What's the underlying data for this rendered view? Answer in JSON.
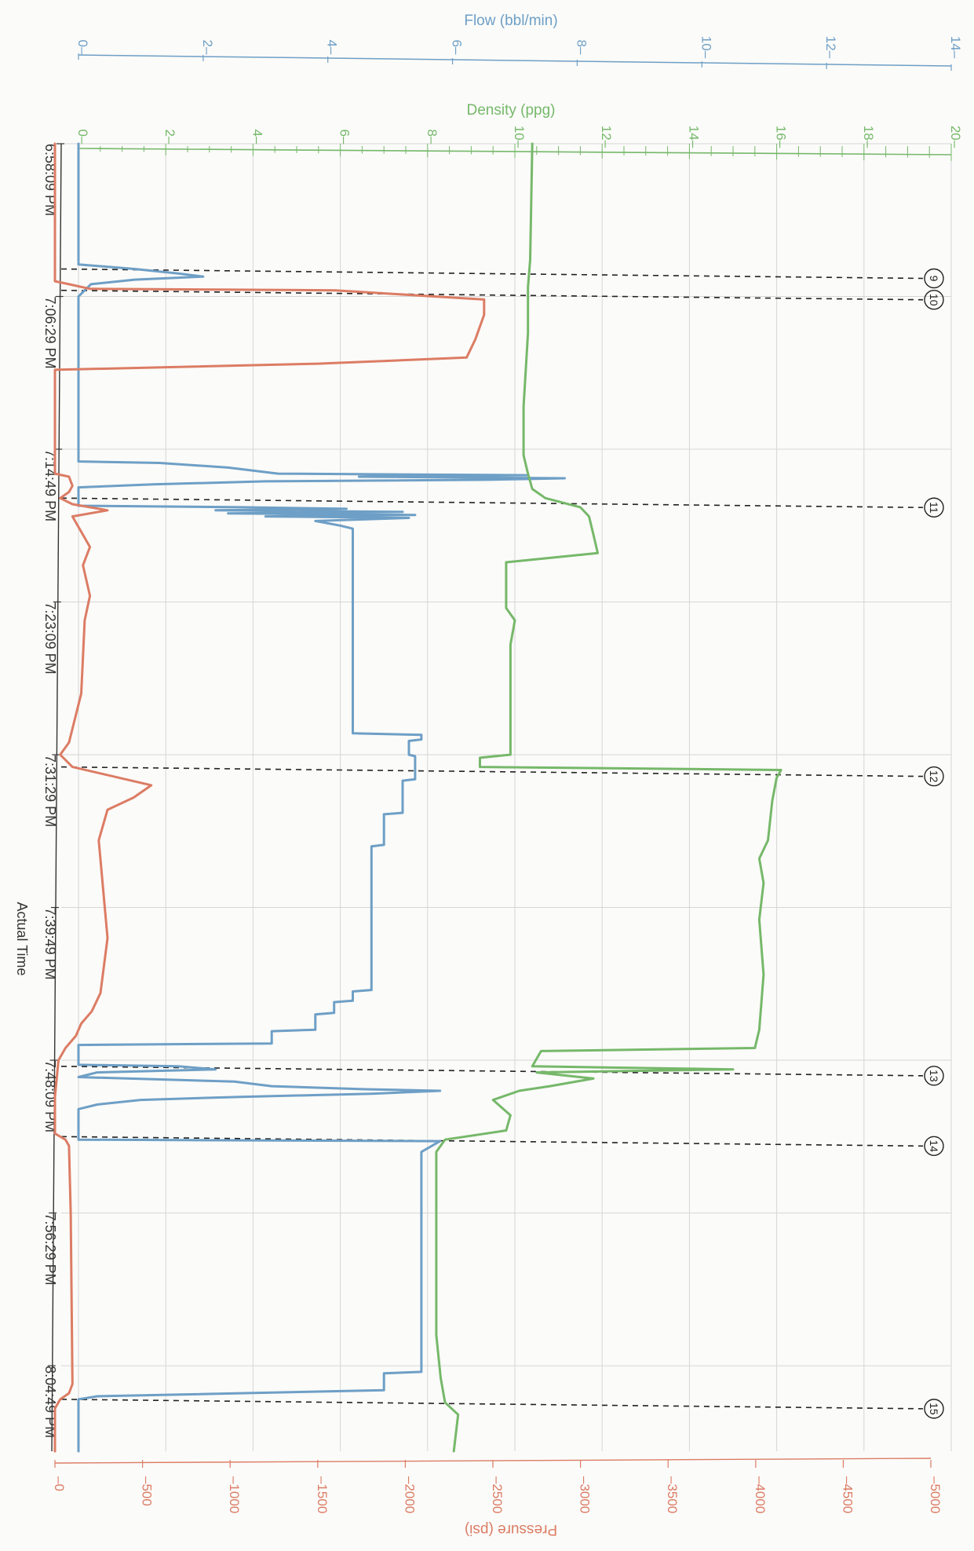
{
  "chart_data": {
    "type": "line",
    "title": "",
    "colors": {
      "flow": "#6e9fc6",
      "density": "#76b86a",
      "pressure": "#dc7c64",
      "grid": "#d6d6d6",
      "event": "#222222",
      "time_axis": "#333333"
    },
    "time_axis": {
      "label": "Actual Time",
      "ticks": [
        "6:58:09 PM",
        "7:06:29 PM",
        "7:14:49 PM",
        "7:23:09 PM",
        "7:31:29 PM",
        "7:39:49 PM",
        "7:48:09 PM",
        "7:56:29 PM",
        "8:04:49 PM"
      ],
      "start": "6:58:09 PM",
      "end": "8:09:29 PM",
      "grid": true
    },
    "flow_axis": {
      "label": "Flow (bbl/min)",
      "range": [
        0,
        14
      ],
      "ticks": [
        "0",
        "2",
        "4",
        "6",
        "8",
        "10",
        "12",
        "14"
      ]
    },
    "density_axis": {
      "label": "Density (ppg)",
      "range": [
        0,
        20
      ],
      "ticks": [
        "0",
        "2",
        "4",
        "6",
        "8",
        "10",
        "12",
        "14",
        "16",
        "18",
        "20"
      ]
    },
    "pressure_axis": {
      "label": "Pressure (psi)",
      "range": [
        0,
        5000
      ],
      "ticks": [
        "0",
        "500",
        "1000",
        "1500",
        "2000",
        "2500",
        "3000",
        "3500",
        "4000",
        "4500",
        "5000"
      ]
    },
    "events": [
      {
        "labels": [
          "9"
        ],
        "time": "7:04:59 PM"
      },
      {
        "labels": [
          "10"
        ],
        "time": "7:06:09 PM"
      },
      {
        "labels": [
          "11"
        ],
        "time": "7:17:29 PM"
      },
      {
        "labels": [
          "12"
        ],
        "time": "7:32:09 PM"
      },
      {
        "labels": [
          "13"
        ],
        "time": "7:48:29 PM"
      },
      {
        "labels": [
          "14"
        ],
        "time": "7:52:19 PM"
      },
      {
        "labels": [
          "15"
        ],
        "time": "8:06:39 PM"
      }
    ],
    "series": [
      {
        "name": "Flow",
        "unit": "bbl/min",
        "axis": "flow",
        "points": [
          [
            "6:58:09 PM",
            0
          ],
          [
            "7:04:44 PM",
            0
          ],
          [
            "7:04:59 PM",
            0.9
          ],
          [
            "7:05:14 PM",
            1.6
          ],
          [
            "7:05:24 PM",
            2.0
          ],
          [
            "7:05:34 PM",
            0.9
          ],
          [
            "7:05:49 PM",
            0.2
          ],
          [
            "7:06:29 PM",
            0
          ],
          [
            "7:15:29 PM",
            0
          ],
          [
            "7:15:34 PM",
            1.3
          ],
          [
            "7:15:49 PM",
            2.4
          ],
          [
            "7:16:09 PM",
            3.2
          ],
          [
            "7:16:14 PM",
            7.2
          ],
          [
            "7:16:19 PM",
            4.5
          ],
          [
            "7:16:24 PM",
            7.8
          ],
          [
            "7:16:29 PM",
            6.6
          ],
          [
            "7:16:34 PM",
            3.0
          ],
          [
            "7:16:44 PM",
            1.2
          ],
          [
            "7:16:54 PM",
            0
          ],
          [
            "7:17:54 PM",
            0
          ],
          [
            "7:17:59 PM",
            2.6
          ],
          [
            "7:18:04 PM",
            4.3
          ],
          [
            "7:18:09 PM",
            2.2
          ],
          [
            "7:18:14 PM",
            5.2
          ],
          [
            "7:18:19 PM",
            2.4
          ],
          [
            "7:18:24 PM",
            5.4
          ],
          [
            "7:18:29 PM",
            3.0
          ],
          [
            "7:18:34 PM",
            5.3
          ],
          [
            "7:18:44 PM",
            3.8
          ],
          [
            "7:18:59 PM",
            4.2
          ],
          [
            "7:19:09 PM",
            4.4
          ],
          [
            "7:30:19 PM",
            4.4
          ],
          [
            "7:30:24 PM",
            5.5
          ],
          [
            "7:30:39 PM",
            5.5
          ],
          [
            "7:30:44 PM",
            5.3
          ],
          [
            "7:31:29 PM",
            5.3
          ],
          [
            "7:31:34 PM",
            5.4
          ],
          [
            "7:32:49 PM",
            5.4
          ],
          [
            "7:32:54 PM",
            5.2
          ],
          [
            "7:34:39 PM",
            5.2
          ],
          [
            "7:34:44 PM",
            4.9
          ],
          [
            "7:36:24 PM",
            4.9
          ],
          [
            "7:36:29 PM",
            4.7
          ],
          [
            "7:44:19 PM",
            4.7
          ],
          [
            "7:44:24 PM",
            4.4
          ],
          [
            "7:44:54 PM",
            4.4
          ],
          [
            "7:44:59 PM",
            4.1
          ],
          [
            "7:45:34 PM",
            4.1
          ],
          [
            "7:45:39 PM",
            3.8
          ],
          [
            "7:46:29 PM",
            3.8
          ],
          [
            "7:46:34 PM",
            3.1
          ],
          [
            "7:47:14 PM",
            3.1
          ],
          [
            "7:47:19 PM",
            0
          ],
          [
            "7:48:24 PM",
            0
          ],
          [
            "7:48:29 PM",
            1.6
          ],
          [
            "7:48:39 PM",
            2.2
          ],
          [
            "7:48:49 PM",
            0.3
          ],
          [
            "7:49:04 PM",
            0
          ],
          [
            "7:49:19 PM",
            2.5
          ],
          [
            "7:49:34 PM",
            3.1
          ],
          [
            "7:49:44 PM",
            4.6
          ],
          [
            "7:49:49 PM",
            5.8
          ],
          [
            "7:49:59 PM",
            4.7
          ],
          [
            "7:50:09 PM",
            2.6
          ],
          [
            "7:50:19 PM",
            1.0
          ],
          [
            "7:50:34 PM",
            0.3
          ],
          [
            "7:50:49 PM",
            0
          ],
          [
            "7:52:29 PM",
            0
          ],
          [
            "7:52:34 PM",
            5.8
          ],
          [
            "7:53:09 PM",
            5.5
          ],
          [
            "8:05:09 PM",
            5.5
          ],
          [
            "8:05:14 PM",
            4.9
          ],
          [
            "8:06:09 PM",
            4.9
          ],
          [
            "8:06:29 PM",
            0.3
          ],
          [
            "8:06:39 PM",
            0
          ],
          [
            "8:09:29 PM",
            0
          ]
        ]
      },
      {
        "name": "Density",
        "unit": "ppg",
        "axis": "density",
        "points": [
          [
            "6:58:09 PM",
            10.4
          ],
          [
            "7:04:29 PM",
            10.35
          ],
          [
            "7:05:59 PM",
            10.3
          ],
          [
            "7:08:29 PM",
            10.3
          ],
          [
            "7:12:29 PM",
            10.2
          ],
          [
            "7:15:09 PM",
            10.2
          ],
          [
            "7:16:09 PM",
            10.3
          ],
          [
            "7:16:59 PM",
            10.4
          ],
          [
            "7:17:29 PM",
            10.7
          ],
          [
            "7:17:59 PM",
            11.5
          ],
          [
            "7:18:29 PM",
            11.7
          ],
          [
            "7:19:29 PM",
            11.8
          ],
          [
            "7:20:29 PM",
            11.9
          ],
          [
            "7:20:59 PM",
            9.8
          ],
          [
            "7:23:29 PM",
            9.8
          ],
          [
            "7:24:09 PM",
            10.0
          ],
          [
            "7:25:29 PM",
            9.9
          ],
          [
            "7:31:29 PM",
            9.9
          ],
          [
            "7:31:39 PM",
            9.2
          ],
          [
            "7:32:09 PM",
            9.2
          ],
          [
            "7:32:19 PM",
            16.1
          ],
          [
            "7:32:44 PM",
            16.0
          ],
          [
            "7:33:59 PM",
            15.9
          ],
          [
            "7:36:09 PM",
            15.8
          ],
          [
            "7:37:09 PM",
            15.6
          ],
          [
            "7:38:29 PM",
            15.7
          ],
          [
            "7:40:29 PM",
            15.6
          ],
          [
            "7:43:29 PM",
            15.7
          ],
          [
            "7:46:29 PM",
            15.6
          ],
          [
            "7:47:29 PM",
            15.5
          ],
          [
            "7:47:39 PM",
            10.6
          ],
          [
            "7:48:29 PM",
            10.4
          ],
          [
            "7:48:39 PM",
            15.0
          ],
          [
            "7:48:49 PM",
            10.5
          ],
          [
            "7:49:09 PM",
            11.8
          ],
          [
            "7:49:34 PM",
            10.8
          ],
          [
            "7:49:49 PM",
            10.1
          ],
          [
            "7:50:19 PM",
            9.5
          ],
          [
            "7:51:09 PM",
            9.9
          ],
          [
            "7:51:59 PM",
            9.8
          ],
          [
            "7:52:29 PM",
            8.4
          ],
          [
            "7:53:09 PM",
            8.2
          ],
          [
            "8:03:09 PM",
            8.2
          ],
          [
            "8:05:29 PM",
            8.3
          ],
          [
            "8:06:49 PM",
            8.4
          ],
          [
            "8:07:29 PM",
            8.7
          ],
          [
            "8:09:29 PM",
            8.6
          ]
        ]
      },
      {
        "name": "Pressure",
        "unit": "psi",
        "axis": "pressure",
        "points": [
          [
            "6:58:09 PM",
            0
          ],
          [
            "7:05:39 PM",
            0
          ],
          [
            "7:05:49 PM",
            80
          ],
          [
            "7:06:04 PM",
            200
          ],
          [
            "7:06:09 PM",
            1600
          ],
          [
            "7:06:39 PM",
            2450
          ],
          [
            "7:07:29 PM",
            2450
          ],
          [
            "7:08:49 PM",
            2400
          ],
          [
            "7:09:49 PM",
            2350
          ],
          [
            "7:10:09 PM",
            1500
          ],
          [
            "7:10:29 PM",
            0
          ],
          [
            "7:16:09 PM",
            0
          ],
          [
            "7:16:19 PM",
            80
          ],
          [
            "7:16:49 PM",
            100
          ],
          [
            "7:17:09 PM",
            80
          ],
          [
            "7:17:29 PM",
            30
          ],
          [
            "7:17:49 PM",
            100
          ],
          [
            "7:18:09 PM",
            300
          ],
          [
            "7:18:29 PM",
            100
          ],
          [
            "7:20:09 PM",
            200
          ],
          [
            "7:21:09 PM",
            160
          ],
          [
            "7:22:49 PM",
            200
          ],
          [
            "7:24:09 PM",
            170
          ],
          [
            "7:28:09 PM",
            150
          ],
          [
            "7:30:49 PM",
            80
          ],
          [
            "7:31:29 PM",
            30
          ],
          [
            "7:32:09 PM",
            100
          ],
          [
            "7:33:09 PM",
            550
          ],
          [
            "7:33:49 PM",
            450
          ],
          [
            "7:34:29 PM",
            300
          ],
          [
            "7:36:09 PM",
            250
          ],
          [
            "7:41:29 PM",
            300
          ],
          [
            "7:44:29 PM",
            260
          ],
          [
            "7:45:29 PM",
            210
          ],
          [
            "7:46:09 PM",
            150
          ],
          [
            "7:46:49 PM",
            120
          ],
          [
            "7:47:29 PM",
            60
          ],
          [
            "7:48:09 PM",
            20
          ],
          [
            "7:50:09 PM",
            0
          ],
          [
            "7:52:09 PM",
            0
          ],
          [
            "7:52:29 PM",
            60
          ],
          [
            "7:52:49 PM",
            80
          ],
          [
            "7:56:29 PM",
            90
          ],
          [
            "8:05:49 PM",
            100
          ],
          [
            "8:06:19 PM",
            80
          ],
          [
            "8:06:39 PM",
            30
          ],
          [
            "8:07:09 PM",
            0
          ],
          [
            "8:09:29 PM",
            0
          ]
        ]
      }
    ]
  }
}
